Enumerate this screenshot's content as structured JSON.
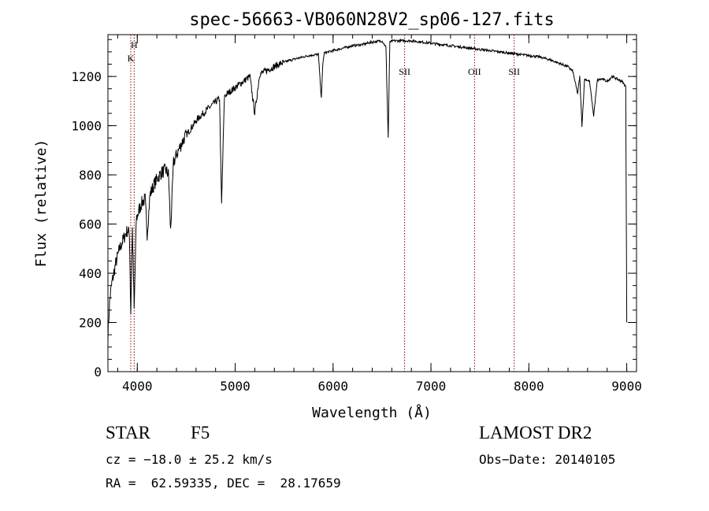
{
  "chart_data": {
    "type": "line",
    "title": "spec-56663-VB060N28V2_sp06-127.fits",
    "xlabel": "Wavelength (Å)",
    "ylabel": "Flux (relative)",
    "xlim": [
      3700,
      9100
    ],
    "ylim": [
      0,
      1370
    ],
    "xticks": [
      4000,
      5000,
      6000,
      7000,
      8000,
      9000
    ],
    "yticks": [
      0,
      200,
      400,
      600,
      800,
      1000,
      1200
    ],
    "grid": false,
    "line_color": "#000000",
    "marker_color": "#8b0000",
    "series": [
      {
        "x": [
          3700,
          3720,
          3740,
          3760,
          3780,
          3800,
          3820,
          3840,
          3860,
          3880,
          3900,
          3920,
          3933,
          3950,
          3968,
          3990,
          4020,
          4050,
          4080,
          4101,
          4130,
          4170,
          4210,
          4250,
          4290,
          4320,
          4340,
          4370,
          4420,
          4480,
          4550,
          4620,
          4700,
          4780,
          4840,
          4861,
          4890,
          4950,
          5050,
          5150,
          5200,
          5250,
          5350,
          5450,
          5550,
          5650,
          5750,
          5850,
          5880,
          5895,
          5910,
          6000,
          6100,
          6200,
          6300,
          6400,
          6500,
          6540,
          6563,
          6580,
          6620,
          6700,
          6800,
          6900,
          7000,
          7100,
          7200,
          7300,
          7400,
          7500,
          7600,
          7700,
          7800,
          7900,
          8000,
          8100,
          8200,
          8300,
          8400,
          8450,
          8498,
          8520,
          8542,
          8570,
          8620,
          8662,
          8700,
          8750,
          8800,
          8850,
          8900,
          8950,
          8990,
          9000
        ],
        "y": [
          150,
          300,
          360,
          400,
          440,
          470,
          500,
          520,
          540,
          560,
          575,
          560,
          240,
          580,
          250,
          620,
          660,
          690,
          700,
          560,
          720,
          760,
          790,
          810,
          820,
          800,
          570,
          850,
          900,
          950,
          990,
          1030,
          1060,
          1090,
          1110,
          680,
          1120,
          1140,
          1170,
          1200,
          1050,
          1210,
          1230,
          1250,
          1265,
          1275,
          1285,
          1290,
          1110,
          1250,
          1295,
          1305,
          1315,
          1325,
          1330,
          1340,
          1345,
          1320,
          950,
          1340,
          1345,
          1345,
          1345,
          1340,
          1335,
          1330,
          1325,
          1320,
          1315,
          1310,
          1305,
          1300,
          1295,
          1290,
          1285,
          1280,
          1270,
          1255,
          1240,
          1220,
          1130,
          1200,
          1000,
          1190,
          1180,
          1040,
          1185,
          1190,
          1180,
          1200,
          1190,
          1180,
          1160,
          200
        ]
      }
    ],
    "line_markers": [
      {
        "label": "H",
        "x": 3968
      },
      {
        "label": "K",
        "x": 3933
      },
      {
        "label": "SII",
        "x": 6731
      },
      {
        "label": "OII",
        "x": 7445
      },
      {
        "label": "SII",
        "x": 7850
      }
    ]
  },
  "info": {
    "object_class": "STAR",
    "subclass": "F5",
    "survey": "LAMOST DR2",
    "cz": "cz = −18.0 ± 25.2 km/s",
    "obs_date": "Obs−Date: 20140105",
    "coords": "RA =  62.59335, DEC =  28.17659"
  }
}
